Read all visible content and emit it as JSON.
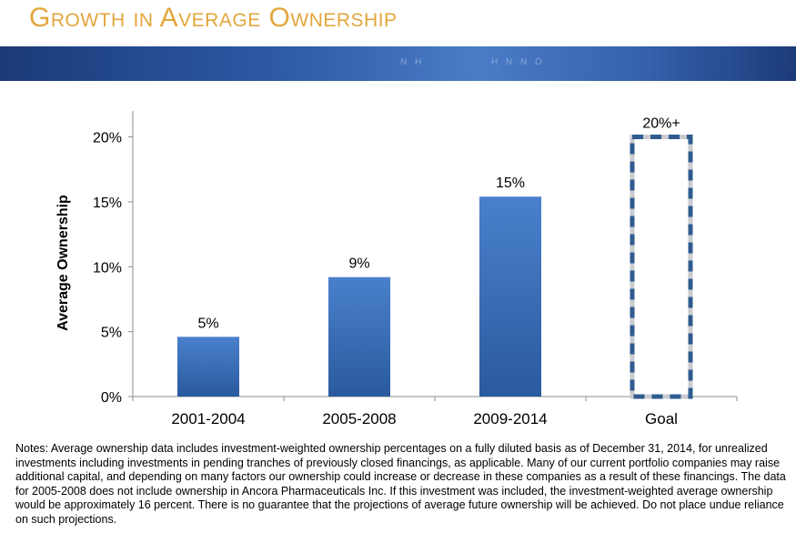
{
  "slide": {
    "title": "Growth in Average Ownership",
    "banner_text_left": "N H",
    "banner_text_right": "H N   N   O"
  },
  "colors": {
    "title": "#e3a63d",
    "bar_top": "#4a80cc",
    "bar_bottom": "#2a5a9e",
    "goal_dash_blue": "#2f5b8f",
    "goal_dash_gray": "#c9cbcf"
  },
  "chart_data": {
    "type": "bar",
    "categories": [
      "2001-2004",
      "2005-2008",
      "2009-2014",
      "Goal"
    ],
    "values": [
      4.6,
      9.2,
      15.4,
      20
    ],
    "data_labels": [
      "5%",
      "9%",
      "15%",
      "20%+"
    ],
    "ylabel": "Average Ownership",
    "ylim": [
      0,
      22
    ],
    "yticks": [
      0,
      5,
      10,
      15,
      20
    ],
    "ytick_labels": [
      "0%",
      "5%",
      "10%",
      "15%",
      "20%"
    ],
    "goal_style": "dashed-outline"
  },
  "notes": "Notes: Average ownership data includes investment-weighted ownership percentages on a fully diluted basis as of December 31, 2014, for unrealized investments including investments in pending tranches of previously closed financings, as applicable.  Many of our current portfolio companies may raise additional capital, and depending on many factors our ownership could increase or decrease in these companies as a result of these financings.  The data for 2005-2008 does not include ownership in Ancora Pharmaceuticals Inc.  If this investment was included, the investment-weighted average ownership would be approximately 16 percent.  There is no guarantee that the projections of average future ownership will be achieved.  Do not place undue reliance on such projections."
}
